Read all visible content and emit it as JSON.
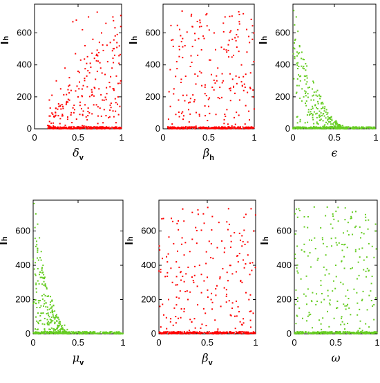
{
  "chart_data": [
    {
      "type": "scatter",
      "param": "delta_v",
      "xlabel": "δ",
      "xlabel_sub": "v",
      "ylabel": "I",
      "ylabel_sub": "h",
      "color": "#ff0000",
      "xlim": [
        0,
        1
      ],
      "ylim": [
        0,
        780
      ],
      "xticks": [
        "0",
        "0.5",
        "1"
      ],
      "yticks": [
        "0",
        "200",
        "400",
        "600"
      ],
      "shape": "rising",
      "xstart": 0.15,
      "pts": [
        [
          0.17,
          180
        ],
        [
          0.17,
          80
        ],
        [
          0.18,
          130
        ],
        [
          0.2,
          210
        ],
        [
          0.25,
          300
        ],
        [
          0.28,
          140
        ],
        [
          0.3,
          250
        ],
        [
          0.32,
          90
        ],
        [
          0.35,
          380
        ],
        [
          0.37,
          170
        ],
        [
          0.38,
          60
        ],
        [
          0.4,
          320
        ],
        [
          0.42,
          240
        ],
        [
          0.44,
          670
        ],
        [
          0.46,
          120
        ],
        [
          0.47,
          470
        ],
        [
          0.48,
          680
        ],
        [
          0.5,
          200
        ],
        [
          0.5,
          360
        ],
        [
          0.52,
          90
        ],
        [
          0.53,
          430
        ],
        [
          0.55,
          620
        ],
        [
          0.56,
          270
        ],
        [
          0.58,
          150
        ],
        [
          0.58,
          520
        ],
        [
          0.6,
          330
        ],
        [
          0.62,
          700
        ],
        [
          0.63,
          100
        ],
        [
          0.64,
          410
        ],
        [
          0.66,
          230
        ],
        [
          0.67,
          560
        ],
        [
          0.68,
          150
        ],
        [
          0.7,
          310
        ],
        [
          0.71,
          460
        ],
        [
          0.72,
          730
        ],
        [
          0.73,
          80
        ],
        [
          0.74,
          250
        ],
        [
          0.76,
          380
        ],
        [
          0.77,
          600
        ],
        [
          0.78,
          180
        ],
        [
          0.79,
          490
        ],
        [
          0.8,
          120
        ],
        [
          0.81,
          340
        ],
        [
          0.82,
          660
        ],
        [
          0.83,
          220
        ],
        [
          0.84,
          420
        ],
        [
          0.85,
          70
        ],
        [
          0.86,
          290
        ],
        [
          0.87,
          540
        ],
        [
          0.88,
          160
        ],
        [
          0.89,
          380
        ],
        [
          0.9,
          700
        ],
        [
          0.91,
          250
        ],
        [
          0.92,
          460
        ],
        [
          0.93,
          110
        ],
        [
          0.94,
          330
        ],
        [
          0.95,
          590
        ],
        [
          0.96,
          200
        ],
        [
          0.97,
          410
        ],
        [
          0.98,
          140
        ],
        [
          0.99,
          300
        ],
        [
          0.99,
          640
        ]
      ]
    },
    {
      "type": "scatter",
      "param": "beta_h",
      "xlabel": "β",
      "xlabel_sub": "h",
      "ylabel": "I",
      "ylabel_sub": "h",
      "color": "#ff0000",
      "xlim": [
        0,
        1
      ],
      "ylim": [
        0,
        780
      ],
      "xticks": [
        "0",
        "0.5",
        "1"
      ],
      "yticks": [
        "0",
        "200",
        "400",
        "600"
      ],
      "shape": "uniform",
      "xstart": 0.05,
      "pts": [
        [
          0.06,
          60
        ],
        [
          0.08,
          140
        ],
        [
          0.1,
          30
        ],
        [
          0.12,
          250
        ],
        [
          0.14,
          90
        ],
        [
          0.15,
          420
        ],
        [
          0.17,
          180
        ],
        [
          0.2,
          310
        ],
        [
          0.22,
          60
        ],
        [
          0.24,
          520
        ],
        [
          0.26,
          210
        ],
        [
          0.28,
          120
        ],
        [
          0.3,
          390
        ],
        [
          0.32,
          640
        ],
        [
          0.34,
          170
        ],
        [
          0.36,
          280
        ],
        [
          0.38,
          460
        ],
        [
          0.4,
          80
        ],
        [
          0.42,
          350
        ],
        [
          0.44,
          580
        ],
        [
          0.46,
          220
        ],
        [
          0.48,
          720
        ],
        [
          0.5,
          140
        ],
        [
          0.52,
          430
        ],
        [
          0.54,
          260
        ],
        [
          0.56,
          600
        ],
        [
          0.58,
          90
        ],
        [
          0.6,
          380
        ],
        [
          0.62,
          190
        ],
        [
          0.64,
          510
        ],
        [
          0.66,
          300
        ],
        [
          0.68,
          700
        ],
        [
          0.7,
          120
        ],
        [
          0.72,
          450
        ],
        [
          0.74,
          240
        ],
        [
          0.76,
          560
        ],
        [
          0.78,
          70
        ],
        [
          0.8,
          330
        ],
        [
          0.82,
          620
        ],
        [
          0.84,
          180
        ],
        [
          0.86,
          400
        ],
        [
          0.88,
          720
        ],
        [
          0.9,
          260
        ],
        [
          0.92,
          480
        ],
        [
          0.94,
          110
        ],
        [
          0.96,
          350
        ],
        [
          0.98,
          560
        ],
        [
          0.99,
          200
        ]
      ]
    },
    {
      "type": "scatter",
      "param": "epsilon",
      "xlabel": "ϵ",
      "xlabel_sub": "",
      "ylabel": "I",
      "ylabel_sub": "h",
      "color": "#66cc22",
      "xlim": [
        0,
        1
      ],
      "ylim": [
        0,
        780
      ],
      "xticks": [
        "0",
        "0.5",
        "1"
      ],
      "yticks": [
        "0",
        "200",
        "400",
        "600"
      ],
      "shape": "decay",
      "xstart": 0.0,
      "pts": [
        [
          0.01,
          740
        ],
        [
          0.02,
          650
        ],
        [
          0.03,
          560
        ],
        [
          0.04,
          700
        ],
        [
          0.05,
          480
        ],
        [
          0.06,
          610
        ],
        [
          0.07,
          390
        ],
        [
          0.08,
          520
        ],
        [
          0.09,
          300
        ],
        [
          0.1,
          440
        ],
        [
          0.11,
          250
        ],
        [
          0.12,
          380
        ],
        [
          0.13,
          200
        ],
        [
          0.14,
          330
        ],
        [
          0.15,
          160
        ],
        [
          0.16,
          280
        ],
        [
          0.18,
          220
        ],
        [
          0.19,
          120
        ],
        [
          0.2,
          260
        ],
        [
          0.22,
          180
        ],
        [
          0.24,
          90
        ],
        [
          0.25,
          210
        ],
        [
          0.27,
          150
        ],
        [
          0.29,
          70
        ],
        [
          0.3,
          170
        ],
        [
          0.32,
          110
        ],
        [
          0.34,
          60
        ],
        [
          0.36,
          130
        ],
        [
          0.38,
          80
        ],
        [
          0.4,
          40
        ],
        [
          0.42,
          100
        ],
        [
          0.45,
          60
        ],
        [
          0.48,
          30
        ],
        [
          0.52,
          50
        ],
        [
          0.55,
          25
        ],
        [
          0.6,
          20
        ]
      ]
    },
    {
      "type": "scatter",
      "param": "mu_v",
      "xlabel": "μ",
      "xlabel_sub": "v",
      "ylabel": "I",
      "ylabel_sub": "h",
      "color": "#66cc22",
      "xlim": [
        0,
        1
      ],
      "ylim": [
        0,
        780
      ],
      "xticks": [
        "0",
        "0.5",
        "1"
      ],
      "yticks": [
        "0",
        "200",
        "400",
        "600"
      ],
      "shape": "decay-fast",
      "xstart": 0.0,
      "pts": [
        [
          0.01,
          760
        ],
        [
          0.02,
          620
        ],
        [
          0.03,
          700
        ],
        [
          0.04,
          520
        ],
        [
          0.05,
          640
        ],
        [
          0.06,
          430
        ],
        [
          0.07,
          560
        ],
        [
          0.08,
          360
        ],
        [
          0.09,
          480
        ],
        [
          0.1,
          290
        ],
        [
          0.11,
          400
        ],
        [
          0.12,
          230
        ],
        [
          0.13,
          330
        ],
        [
          0.14,
          180
        ],
        [
          0.15,
          270
        ],
        [
          0.16,
          140
        ],
        [
          0.17,
          220
        ],
        [
          0.18,
          100
        ],
        [
          0.19,
          170
        ],
        [
          0.2,
          80
        ],
        [
          0.22,
          130
        ],
        [
          0.24,
          60
        ],
        [
          0.26,
          100
        ],
        [
          0.28,
          40
        ],
        [
          0.3,
          70
        ],
        [
          0.32,
          30
        ],
        [
          0.35,
          50
        ],
        [
          0.38,
          25
        ]
      ]
    },
    {
      "type": "scatter",
      "param": "beta_v",
      "xlabel": "β",
      "xlabel_sub": "v",
      "ylabel": "I",
      "ylabel_sub": "h",
      "color": "#ff0000",
      "xlim": [
        0,
        1
      ],
      "ylim": [
        0,
        780
      ],
      "xticks": [
        "0",
        "0.5",
        "1"
      ],
      "yticks": [
        "0",
        "200",
        "400",
        "600"
      ],
      "shape": "uniform",
      "xstart": 0.0,
      "pts": [
        [
          0.02,
          40
        ],
        [
          0.05,
          110
        ],
        [
          0.08,
          30
        ],
        [
          0.1,
          200
        ],
        [
          0.12,
          70
        ],
        [
          0.14,
          300
        ],
        [
          0.16,
          150
        ],
        [
          0.18,
          420
        ],
        [
          0.2,
          90
        ],
        [
          0.22,
          250
        ],
        [
          0.24,
          560
        ],
        [
          0.26,
          130
        ],
        [
          0.28,
          350
        ],
        [
          0.3,
          200
        ],
        [
          0.32,
          480
        ],
        [
          0.34,
          70
        ],
        [
          0.36,
          300
        ],
        [
          0.38,
          620
        ],
        [
          0.4,
          170
        ],
        [
          0.42,
          400
        ],
        [
          0.44,
          240
        ],
        [
          0.46,
          700
        ],
        [
          0.48,
          120
        ],
        [
          0.5,
          330
        ],
        [
          0.52,
          540
        ],
        [
          0.54,
          200
        ],
        [
          0.56,
          440
        ],
        [
          0.58,
          80
        ],
        [
          0.6,
          280
        ],
        [
          0.62,
          650
        ],
        [
          0.64,
          160
        ],
        [
          0.66,
          380
        ],
        [
          0.68,
          500
        ],
        [
          0.7,
          230
        ],
        [
          0.72,
          730
        ],
        [
          0.74,
          110
        ],
        [
          0.76,
          350
        ],
        [
          0.78,
          590
        ],
        [
          0.8,
          190
        ],
        [
          0.82,
          420
        ],
        [
          0.84,
          70
        ],
        [
          0.86,
          300
        ],
        [
          0.88,
          680
        ],
        [
          0.9,
          240
        ],
        [
          0.92,
          460
        ],
        [
          0.94,
          130
        ],
        [
          0.96,
          370
        ],
        [
          0.98,
          600
        ]
      ]
    },
    {
      "type": "scatter",
      "param": "omega",
      "xlabel": "ω",
      "xlabel_sub": "",
      "ylabel": "I",
      "ylabel_sub": "h",
      "color": "#66cc22",
      "xlim": [
        0,
        1
      ],
      "ylim": [
        0,
        780
      ],
      "xticks": [
        "0",
        "0.5",
        "1"
      ],
      "yticks": [
        "0",
        "200",
        "400",
        "600"
      ],
      "shape": "uniform",
      "xstart": 0.0,
      "pts": [
        [
          0.02,
          60
        ],
        [
          0.04,
          680
        ],
        [
          0.06,
          150
        ],
        [
          0.08,
          320
        ],
        [
          0.1,
          90
        ],
        [
          0.12,
          480
        ],
        [
          0.14,
          220
        ],
        [
          0.16,
          620
        ],
        [
          0.18,
          110
        ],
        [
          0.2,
          390
        ],
        [
          0.22,
          240
        ],
        [
          0.24,
          740
        ],
        [
          0.26,
          170
        ],
        [
          0.28,
          430
        ],
        [
          0.3,
          80
        ],
        [
          0.32,
          310
        ],
        [
          0.34,
          560
        ],
        [
          0.36,
          200
        ],
        [
          0.38,
          460
        ],
        [
          0.4,
          130
        ],
        [
          0.42,
          350
        ],
        [
          0.44,
          640
        ],
        [
          0.46,
          250
        ],
        [
          0.48,
          90
        ],
        [
          0.5,
          400
        ],
        [
          0.52,
          190
        ],
        [
          0.54,
          530
        ],
        [
          0.56,
          300
        ],
        [
          0.58,
          70
        ],
        [
          0.6,
          450
        ],
        [
          0.62,
          220
        ],
        [
          0.64,
          600
        ],
        [
          0.66,
          150
        ],
        [
          0.68,
          380
        ],
        [
          0.7,
          710
        ],
        [
          0.72,
          260
        ],
        [
          0.74,
          480
        ],
        [
          0.76,
          110
        ],
        [
          0.78,
          340
        ],
        [
          0.8,
          560
        ],
        [
          0.82,
          200
        ],
        [
          0.84,
          430
        ],
        [
          0.86,
          680
        ],
        [
          0.88,
          140
        ],
        [
          0.9,
          370
        ],
        [
          0.92,
          250
        ],
        [
          0.94,
          510
        ],
        [
          0.96,
          170
        ],
        [
          0.98,
          640
        ]
      ]
    }
  ]
}
